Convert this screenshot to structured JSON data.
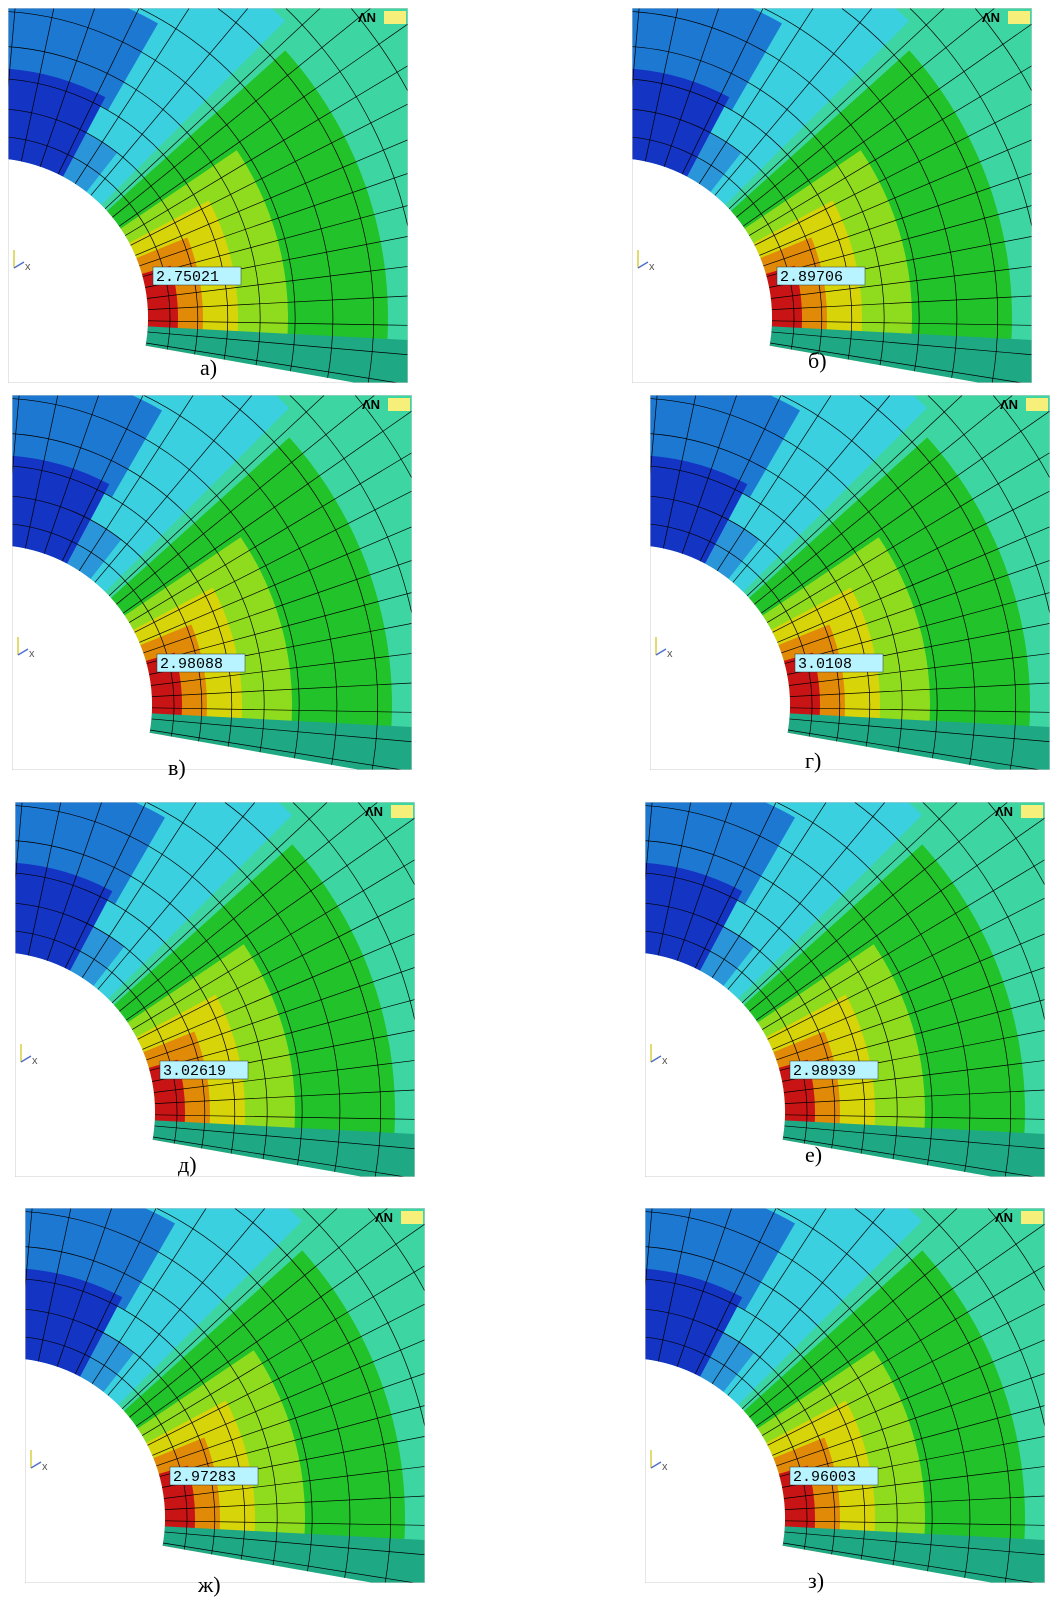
{
  "figure": {
    "logo": "ΛN",
    "axis_label": "x",
    "panels": [
      {
        "value": "2.75021",
        "caption": "а)"
      },
      {
        "value": "2.89706",
        "caption": "б)"
      },
      {
        "value": "2.98088",
        "caption": "в)"
      },
      {
        "value": "3.0108",
        "caption": "г)"
      },
      {
        "value": "3.02619",
        "caption": "д)"
      },
      {
        "value": "2.98939",
        "caption": "е)"
      },
      {
        "value": "2.97283",
        "caption": "ж)"
      },
      {
        "value": "2.96003",
        "caption": "з)"
      }
    ]
  }
}
